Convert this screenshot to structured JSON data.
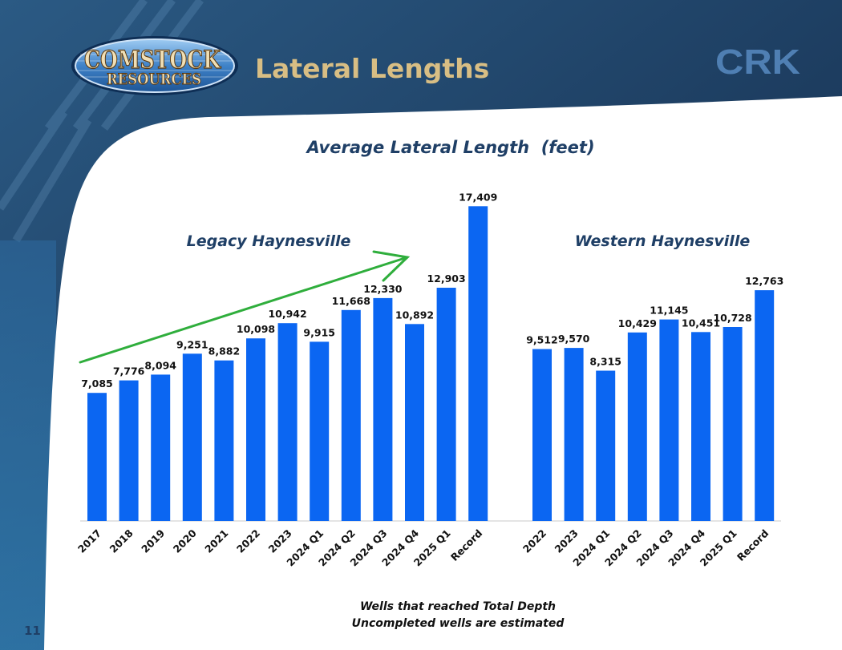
{
  "header": {
    "logo_line1": "COMSTOCK",
    "logo_line2": "RESOURCES",
    "title": "Lateral Lengths",
    "ticker": "CRK"
  },
  "footer": {
    "note_line1": "Wells that reached Total Depth",
    "note_line2": "Uncompleted wells are estimated",
    "page_number": "11"
  },
  "colors": {
    "bar": "#0b66f2",
    "trend_arrow": "#2fae3c",
    "header_bg": "#1e3f62",
    "title_text": "#d8be84",
    "chart_title": "#1f3f66"
  },
  "chart_data": {
    "type": "bar",
    "title": "Average Lateral Length  (feet)",
    "ylim": [
      0,
      18000
    ],
    "grid": false,
    "legend": "none",
    "groups": [
      {
        "name": "Legacy Haynesville",
        "categories": [
          "2017",
          "2018",
          "2019",
          "2020",
          "2021",
          "2022",
          "2023",
          "2024 Q1",
          "2024 Q2",
          "2024 Q3",
          "2024 Q4",
          "2025 Q1",
          "Record"
        ],
        "values": [
          7085,
          7776,
          8094,
          9251,
          8882,
          10098,
          10942,
          9915,
          11668,
          12330,
          10892,
          12903,
          17409
        ],
        "labels": [
          "7,085",
          "7,776",
          "8,094",
          "9,251",
          "8,882",
          "10,098",
          "10,942",
          "9,915",
          "11,668",
          "12,330",
          "10,892",
          "12,903",
          "17,409"
        ],
        "trend_arrow": true
      },
      {
        "name": "Western Haynesville",
        "categories": [
          "2022",
          "2023",
          "2024 Q1",
          "2024 Q2",
          "2024 Q3",
          "2024 Q4",
          "2025 Q1",
          "Record"
        ],
        "values": [
          9512,
          9570,
          8315,
          10429,
          11145,
          10451,
          10728,
          12763
        ],
        "labels": [
          "9,512",
          "9,570",
          "8,315",
          "10,429",
          "11,145",
          "10,451",
          "10,728",
          "12,763"
        ],
        "trend_arrow": false
      }
    ]
  }
}
